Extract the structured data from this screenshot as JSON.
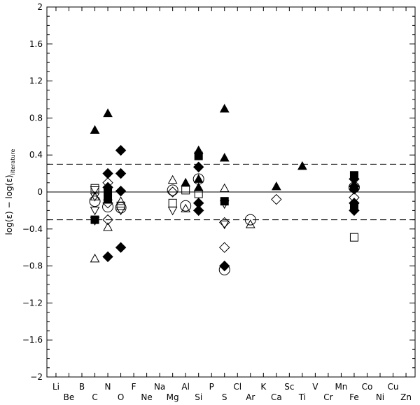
{
  "chart_data": {
    "type": "scatter",
    "title": "",
    "xlabel": "",
    "ylabel": "log(ε) − log(ε)",
    "ylabel_sub": "literature",
    "ylim": [
      -2,
      2
    ],
    "y_ticks": [
      "2",
      "1.6",
      "1.2",
      "0.8",
      "0.4",
      "0",
      "−0.4",
      "−0.8",
      "−1.2",
      "−1.6",
      "−2"
    ],
    "y_tick_values": [
      2,
      1.6,
      1.2,
      0.8,
      0.4,
      0,
      -0.4,
      -0.8,
      -1.2,
      -1.6,
      -2
    ],
    "elements": [
      "Li",
      "Be",
      "B",
      "C",
      "N",
      "O",
      "F",
      "Ne",
      "Na",
      "Mg",
      "Al",
      "Si",
      "P",
      "S",
      "Cl",
      "Ar",
      "K",
      "Ca",
      "Sc",
      "Ti",
      "V",
      "Cr",
      "Mn",
      "Fe",
      "Co",
      "Ni",
      "Cu",
      "Zn"
    ],
    "xlim": [
      0.3,
      28.7
    ],
    "reference_lines": [
      {
        "y": 0.3,
        "style": "dashed"
      },
      {
        "y": 0,
        "style": "solid"
      },
      {
        "y": -0.3,
        "style": "dashed"
      }
    ],
    "grid": false,
    "points": [
      {
        "el": 4,
        "y": 0.67,
        "m": "tri-up-filled"
      },
      {
        "el": 4,
        "y": 0.04,
        "m": "square-open"
      },
      {
        "el": 4,
        "y": 0.02,
        "m": "tri-down-open"
      },
      {
        "el": 4,
        "y": -0.05,
        "m": "tri-up-open"
      },
      {
        "el": 4,
        "y": -0.05,
        "m": "tri-down-open"
      },
      {
        "el": 4,
        "y": -0.1,
        "m": "circle-open"
      },
      {
        "el": 4,
        "y": -0.2,
        "m": "tri-down-open"
      },
      {
        "el": 4,
        "y": -0.3,
        "m": "square-filled"
      },
      {
        "el": 4,
        "y": -0.31,
        "m": "tri-down-open"
      },
      {
        "el": 4,
        "y": -0.72,
        "m": "tri-up-open"
      },
      {
        "el": 5,
        "y": 0.85,
        "m": "tri-up-filled"
      },
      {
        "el": 5,
        "y": 0.2,
        "m": "diamond-filled"
      },
      {
        "el": 5,
        "y": 0.1,
        "m": "diamond-open"
      },
      {
        "el": 5,
        "y": 0.05,
        "m": "diamond-filled"
      },
      {
        "el": 5,
        "y": 0.0,
        "m": "square-filled"
      },
      {
        "el": 5,
        "y": -0.05,
        "m": "tri-up-open"
      },
      {
        "el": 5,
        "y": -0.08,
        "m": "square-filled"
      },
      {
        "el": 5,
        "y": -0.12,
        "m": "diamond-open"
      },
      {
        "el": 5,
        "y": -0.16,
        "m": "circle-open"
      },
      {
        "el": 5,
        "y": -0.3,
        "m": "diamond-open"
      },
      {
        "el": 5,
        "y": -0.38,
        "m": "tri-up-open"
      },
      {
        "el": 5,
        "y": -0.7,
        "m": "diamond-filled"
      },
      {
        "el": 6,
        "y": 0.45,
        "m": "diamond-filled"
      },
      {
        "el": 6,
        "y": 0.2,
        "m": "diamond-filled"
      },
      {
        "el": 6,
        "y": 0.01,
        "m": "diamond-filled"
      },
      {
        "el": 6,
        "y": -0.1,
        "m": "tri-up-open"
      },
      {
        "el": 6,
        "y": -0.15,
        "m": "square-open"
      },
      {
        "el": 6,
        "y": -0.17,
        "m": "circle-open"
      },
      {
        "el": 6,
        "y": -0.2,
        "m": "tri-down-open"
      },
      {
        "el": 6,
        "y": -0.6,
        "m": "diamond-filled"
      },
      {
        "el": 10,
        "y": 0.13,
        "m": "tri-up-open"
      },
      {
        "el": 10,
        "y": 0.02,
        "m": "circle-open"
      },
      {
        "el": 10,
        "y": 0.0,
        "m": "diamond-open"
      },
      {
        "el": 10,
        "y": -0.12,
        "m": "square-open"
      },
      {
        "el": 10,
        "y": -0.2,
        "m": "tri-down-open"
      },
      {
        "el": 11,
        "y": 0.1,
        "m": "tri-up-filled"
      },
      {
        "el": 11,
        "y": 0.02,
        "m": "square-open"
      },
      {
        "el": 11,
        "y": -0.15,
        "m": "circle-open"
      },
      {
        "el": 11,
        "y": -0.18,
        "m": "tri-up-open"
      },
      {
        "el": 12,
        "y": 0.45,
        "m": "tri-up-filled"
      },
      {
        "el": 12,
        "y": 0.39,
        "m": "square-filled"
      },
      {
        "el": 12,
        "y": 0.27,
        "m": "diamond-filled"
      },
      {
        "el": 12,
        "y": 0.14,
        "m": "circle-open"
      },
      {
        "el": 12,
        "y": 0.14,
        "m": "tri-up-filled"
      },
      {
        "el": 12,
        "y": 0.05,
        "m": "tri-up-filled"
      },
      {
        "el": 12,
        "y": -0.02,
        "m": "square-open"
      },
      {
        "el": 12,
        "y": -0.12,
        "m": "diamond-filled"
      },
      {
        "el": 12,
        "y": -0.2,
        "m": "diamond-filled"
      },
      {
        "el": 14,
        "y": 0.9,
        "m": "tri-up-filled"
      },
      {
        "el": 14,
        "y": 0.37,
        "m": "tri-up-filled"
      },
      {
        "el": 14,
        "y": 0.04,
        "m": "tri-up-open"
      },
      {
        "el": 14,
        "y": -0.1,
        "m": "square-filled"
      },
      {
        "el": 14,
        "y": -0.13,
        "m": "tri-down-open"
      },
      {
        "el": 14,
        "y": -0.33,
        "m": "diamond-open"
      },
      {
        "el": 14,
        "y": -0.35,
        "m": "tri-down-open"
      },
      {
        "el": 14,
        "y": -0.6,
        "m": "diamond-open"
      },
      {
        "el": 14,
        "y": -0.8,
        "m": "diamond-filled"
      },
      {
        "el": 14,
        "y": -0.84,
        "m": "circle-open"
      },
      {
        "el": 16,
        "y": -0.3,
        "m": "circle-open"
      },
      {
        "el": 16,
        "y": -0.35,
        "m": "tri-up-open"
      },
      {
        "el": 18,
        "y": 0.06,
        "m": "tri-up-filled"
      },
      {
        "el": 18,
        "y": -0.08,
        "m": "diamond-open"
      },
      {
        "el": 20,
        "y": 0.28,
        "m": "tri-up-filled"
      },
      {
        "el": 24,
        "y": 0.18,
        "m": "square-filled"
      },
      {
        "el": 24,
        "y": 0.14,
        "m": "diamond-filled"
      },
      {
        "el": 24,
        "y": 0.06,
        "m": "diamond-filled"
      },
      {
        "el": 24,
        "y": 0.05,
        "m": "circle-open"
      },
      {
        "el": 24,
        "y": 0.03,
        "m": "diamond-filled"
      },
      {
        "el": 24,
        "y": -0.06,
        "m": "diamond-open"
      },
      {
        "el": 24,
        "y": -0.12,
        "m": "diamond-filled"
      },
      {
        "el": 24,
        "y": -0.15,
        "m": "square-filled"
      },
      {
        "el": 24,
        "y": -0.2,
        "m": "diamond-filled"
      },
      {
        "el": 24,
        "y": -0.49,
        "m": "square-open"
      }
    ]
  }
}
